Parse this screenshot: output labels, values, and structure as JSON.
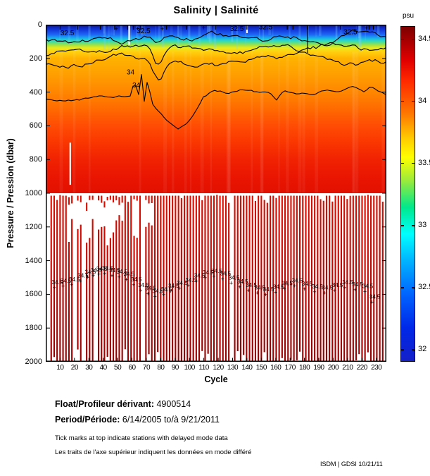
{
  "title": "Salinity | Salinité",
  "colorbar": {
    "unit_label": "psu",
    "ticks": [
      "34.5",
      "34",
      "33.5",
      "33",
      "32.5",
      "32"
    ],
    "tick_values": [
      34.5,
      34,
      33.5,
      33,
      32.5,
      32
    ],
    "range": [
      31.9,
      34.6
    ],
    "colormap": "jet"
  },
  "y_axis": {
    "label": "Pressure / Pression (dbar)",
    "ticks": [
      "0",
      "200",
      "400",
      "600",
      "800",
      "1000",
      "1200",
      "1400",
      "1600",
      "1800",
      "2000"
    ],
    "tick_values": [
      0,
      200,
      400,
      600,
      800,
      1000,
      1200,
      1400,
      1600,
      1800,
      2000
    ]
  },
  "x_axis": {
    "label": "Cycle",
    "ticks": [
      "10",
      "20",
      "30",
      "40",
      "50",
      "60",
      "70",
      "80",
      "90",
      "100",
      "110",
      "120",
      "130",
      "140",
      "150",
      "160",
      "170",
      "180",
      "190",
      "200",
      "210",
      "220",
      "230"
    ],
    "tick_values": [
      10,
      20,
      30,
      40,
      50,
      60,
      70,
      80,
      90,
      100,
      110,
      120,
      130,
      140,
      150,
      160,
      170,
      180,
      190,
      200,
      210,
      220,
      230
    ]
  },
  "footer": {
    "float_label": "Float/Profileur dérivant:",
    "float_value": "4900514",
    "period_label": "Period/Période:",
    "period_value": "6/14/2005  to/à  9/21/2011",
    "note_en": "Tick marks at top indicate stations with delayed mode data",
    "note_fr": "Les traits de l'axe supérieur indiquent les données en mode différé",
    "credit": "ISDM | GDSI  10/21/11"
  },
  "chart_data": {
    "type": "heatmap",
    "title": "Salinity | Salinité",
    "xlabel": "Cycle",
    "ylabel": "Pressure / Pression (dbar)",
    "xlim": [
      0,
      237
    ],
    "ylim": [
      2000,
      0
    ],
    "y_inverted": true,
    "grid": false,
    "colorbar": {
      "label": "psu",
      "ticks": [
        32,
        32.5,
        33,
        33.5,
        34,
        34.5
      ],
      "caxis": [
        31.9,
        34.6
      ],
      "colormap": "jet",
      "position": "right"
    },
    "continuous_field_max_pressure_dbar": 1000,
    "deep_profiles": "below 1000 dbar only alternate cycles sampled, drawn as narrow dark-red stripes reaching ~2000 dbar (salinity ~34.4-34.5 psu)",
    "depth_salinity_profile": [
      {
        "pressure_dbar": 0,
        "salinity_psu": 32.0
      },
      {
        "pressure_dbar": 50,
        "salinity_psu": 32.3
      },
      {
        "pressure_dbar": 75,
        "salinity_psu": 32.5
      },
      {
        "pressure_dbar": 100,
        "salinity_psu": 33.0
      },
      {
        "pressure_dbar": 130,
        "salinity_psu": 33.5
      },
      {
        "pressure_dbar": 170,
        "salinity_psu": 33.7
      },
      {
        "pressure_dbar": 400,
        "salinity_psu": 34.0
      },
      {
        "pressure_dbar": 700,
        "salinity_psu": 34.2
      },
      {
        "pressure_dbar": 1000,
        "salinity_psu": 34.3
      },
      {
        "pressure_dbar": 1500,
        "salinity_psu": 34.5
      },
      {
        "pressure_dbar": 2000,
        "salinity_psu": 34.5
      }
    ],
    "contour_levels_labeled": [
      32.5,
      34,
      34.5
    ],
    "surface_contour_label": {
      "text": "32.5",
      "positions_cycle_dbar": [
        [
          15,
          62
        ],
        [
          68,
          50
        ],
        [
          133,
          38
        ],
        [
          153,
          27
        ],
        [
          212,
          57
        ]
      ]
    },
    "mid_contour_label": {
      "text": "34",
      "positions_cycle_dbar": [
        [
          59,
          295
        ],
        [
          63,
          372
        ]
      ]
    },
    "deep_contour_label": {
      "text": "34.5",
      "positions_cycle_dbar": [
        [
          8,
          1540
        ],
        [
          14,
          1532
        ],
        [
          20,
          1522
        ],
        [
          26,
          1500
        ],
        [
          31,
          1480
        ],
        [
          35,
          1468
        ],
        [
          39,
          1460
        ],
        [
          43,
          1456
        ],
        [
          48,
          1468
        ],
        [
          53,
          1477
        ],
        [
          58,
          1492
        ],
        [
          63,
          1522
        ],
        [
          68,
          1556
        ],
        [
          73,
          1576
        ],
        [
          78,
          1592
        ],
        [
          84,
          1582
        ],
        [
          89,
          1560
        ],
        [
          95,
          1544
        ],
        [
          101,
          1528
        ],
        [
          107,
          1500
        ],
        [
          113,
          1482
        ],
        [
          119,
          1472
        ],
        [
          125,
          1488
        ],
        [
          131,
          1512
        ],
        [
          137,
          1536
        ],
        [
          143,
          1556
        ],
        [
          149,
          1572
        ],
        [
          155,
          1582
        ],
        [
          162,
          1566
        ],
        [
          168,
          1546
        ],
        [
          175,
          1530
        ],
        [
          182,
          1548
        ],
        [
          189,
          1564
        ],
        [
          196,
          1572
        ],
        [
          203,
          1556
        ],
        [
          210,
          1540
        ],
        [
          217,
          1552
        ],
        [
          224,
          1562
        ],
        [
          229,
          1625
        ]
      ]
    },
    "delayed_mode_top_ticks_cycles": [
      10,
      22,
      38,
      48,
      57,
      61,
      66,
      84,
      98,
      118,
      140,
      168,
      172,
      182,
      205,
      225,
      228
    ],
    "plus_marks_cycle_dbar": [
      [
        49,
        20
      ],
      [
        64,
        18
      ],
      [
        81,
        20
      ],
      [
        110,
        14
      ],
      [
        223,
        16
      ]
    ],
    "missing_data_gaps_cycle_p0_p1": [
      [
        58,
        0,
        120
      ],
      [
        140,
        0,
        50
      ],
      [
        17,
        700,
        950
      ]
    ],
    "field_gradient_depth_colors": [
      [
        0.0,
        "#0A12A0"
      ],
      [
        0.03,
        "#1238D8"
      ],
      [
        0.058,
        "#1E64F5"
      ],
      [
        0.078,
        "#18A8F0"
      ],
      [
        0.094,
        "#28D8C8"
      ],
      [
        0.109,
        "#66DE7C"
      ],
      [
        0.123,
        "#AEE23C"
      ],
      [
        0.138,
        "#E6EC1E"
      ],
      [
        0.158,
        "#FFD210"
      ],
      [
        0.2,
        "#FFB200"
      ],
      [
        0.3,
        "#FF9E00"
      ],
      [
        0.4,
        "#FF8600"
      ],
      [
        0.5,
        "#FF6A00"
      ],
      [
        0.6,
        "#FF4C04"
      ],
      [
        0.7,
        "#FA3600"
      ],
      [
        0.8,
        "#F12202"
      ],
      [
        0.9,
        "#EA1602"
      ],
      [
        1.0,
        "#E21000"
      ]
    ],
    "stripe_gradient_colors": [
      [
        "0",
        "#DF0D00"
      ],
      [
        "0.5",
        "#C10400"
      ],
      [
        "1",
        "#970000"
      ]
    ],
    "contour_color": "#000000"
  }
}
